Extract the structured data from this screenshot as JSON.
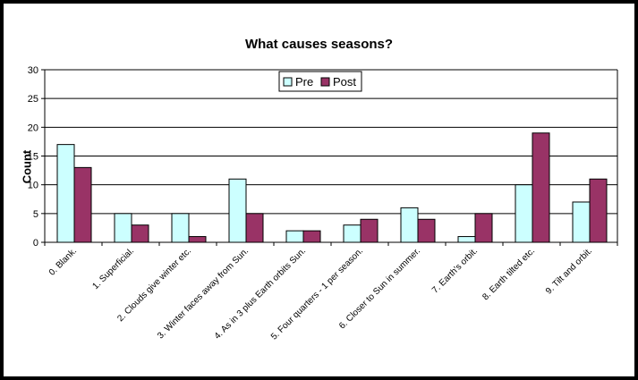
{
  "chart_data": {
    "type": "bar",
    "title": "What causes seasons?",
    "xlabel": "",
    "ylabel": "Count",
    "ylim": [
      0,
      30
    ],
    "yticks": [
      0,
      5,
      10,
      15,
      20,
      25,
      30
    ],
    "grid": true,
    "legend_position": "top-center",
    "categories": [
      "0. Blank.",
      "1. Superficial.",
      "2. Clouds give winter etc.",
      "3. Winter faces away from Sun.",
      "4. As in 3 plus Earth orbits Sun.",
      "5. Four quarters - 1 per season.",
      "6. Closer to Sun in summer.",
      "7. Earth's orbit.",
      "8. Earth tilted etc.",
      "9. Tilt and orbit."
    ],
    "series": [
      {
        "name": "Pre",
        "color": "#ccffff",
        "values": [
          17,
          5,
          5,
          11,
          2,
          3,
          6,
          1,
          10,
          7
        ]
      },
      {
        "name": "Post",
        "color": "#993366",
        "values": [
          13,
          3,
          1,
          5,
          2,
          4,
          4,
          5,
          19,
          11
        ]
      }
    ]
  }
}
